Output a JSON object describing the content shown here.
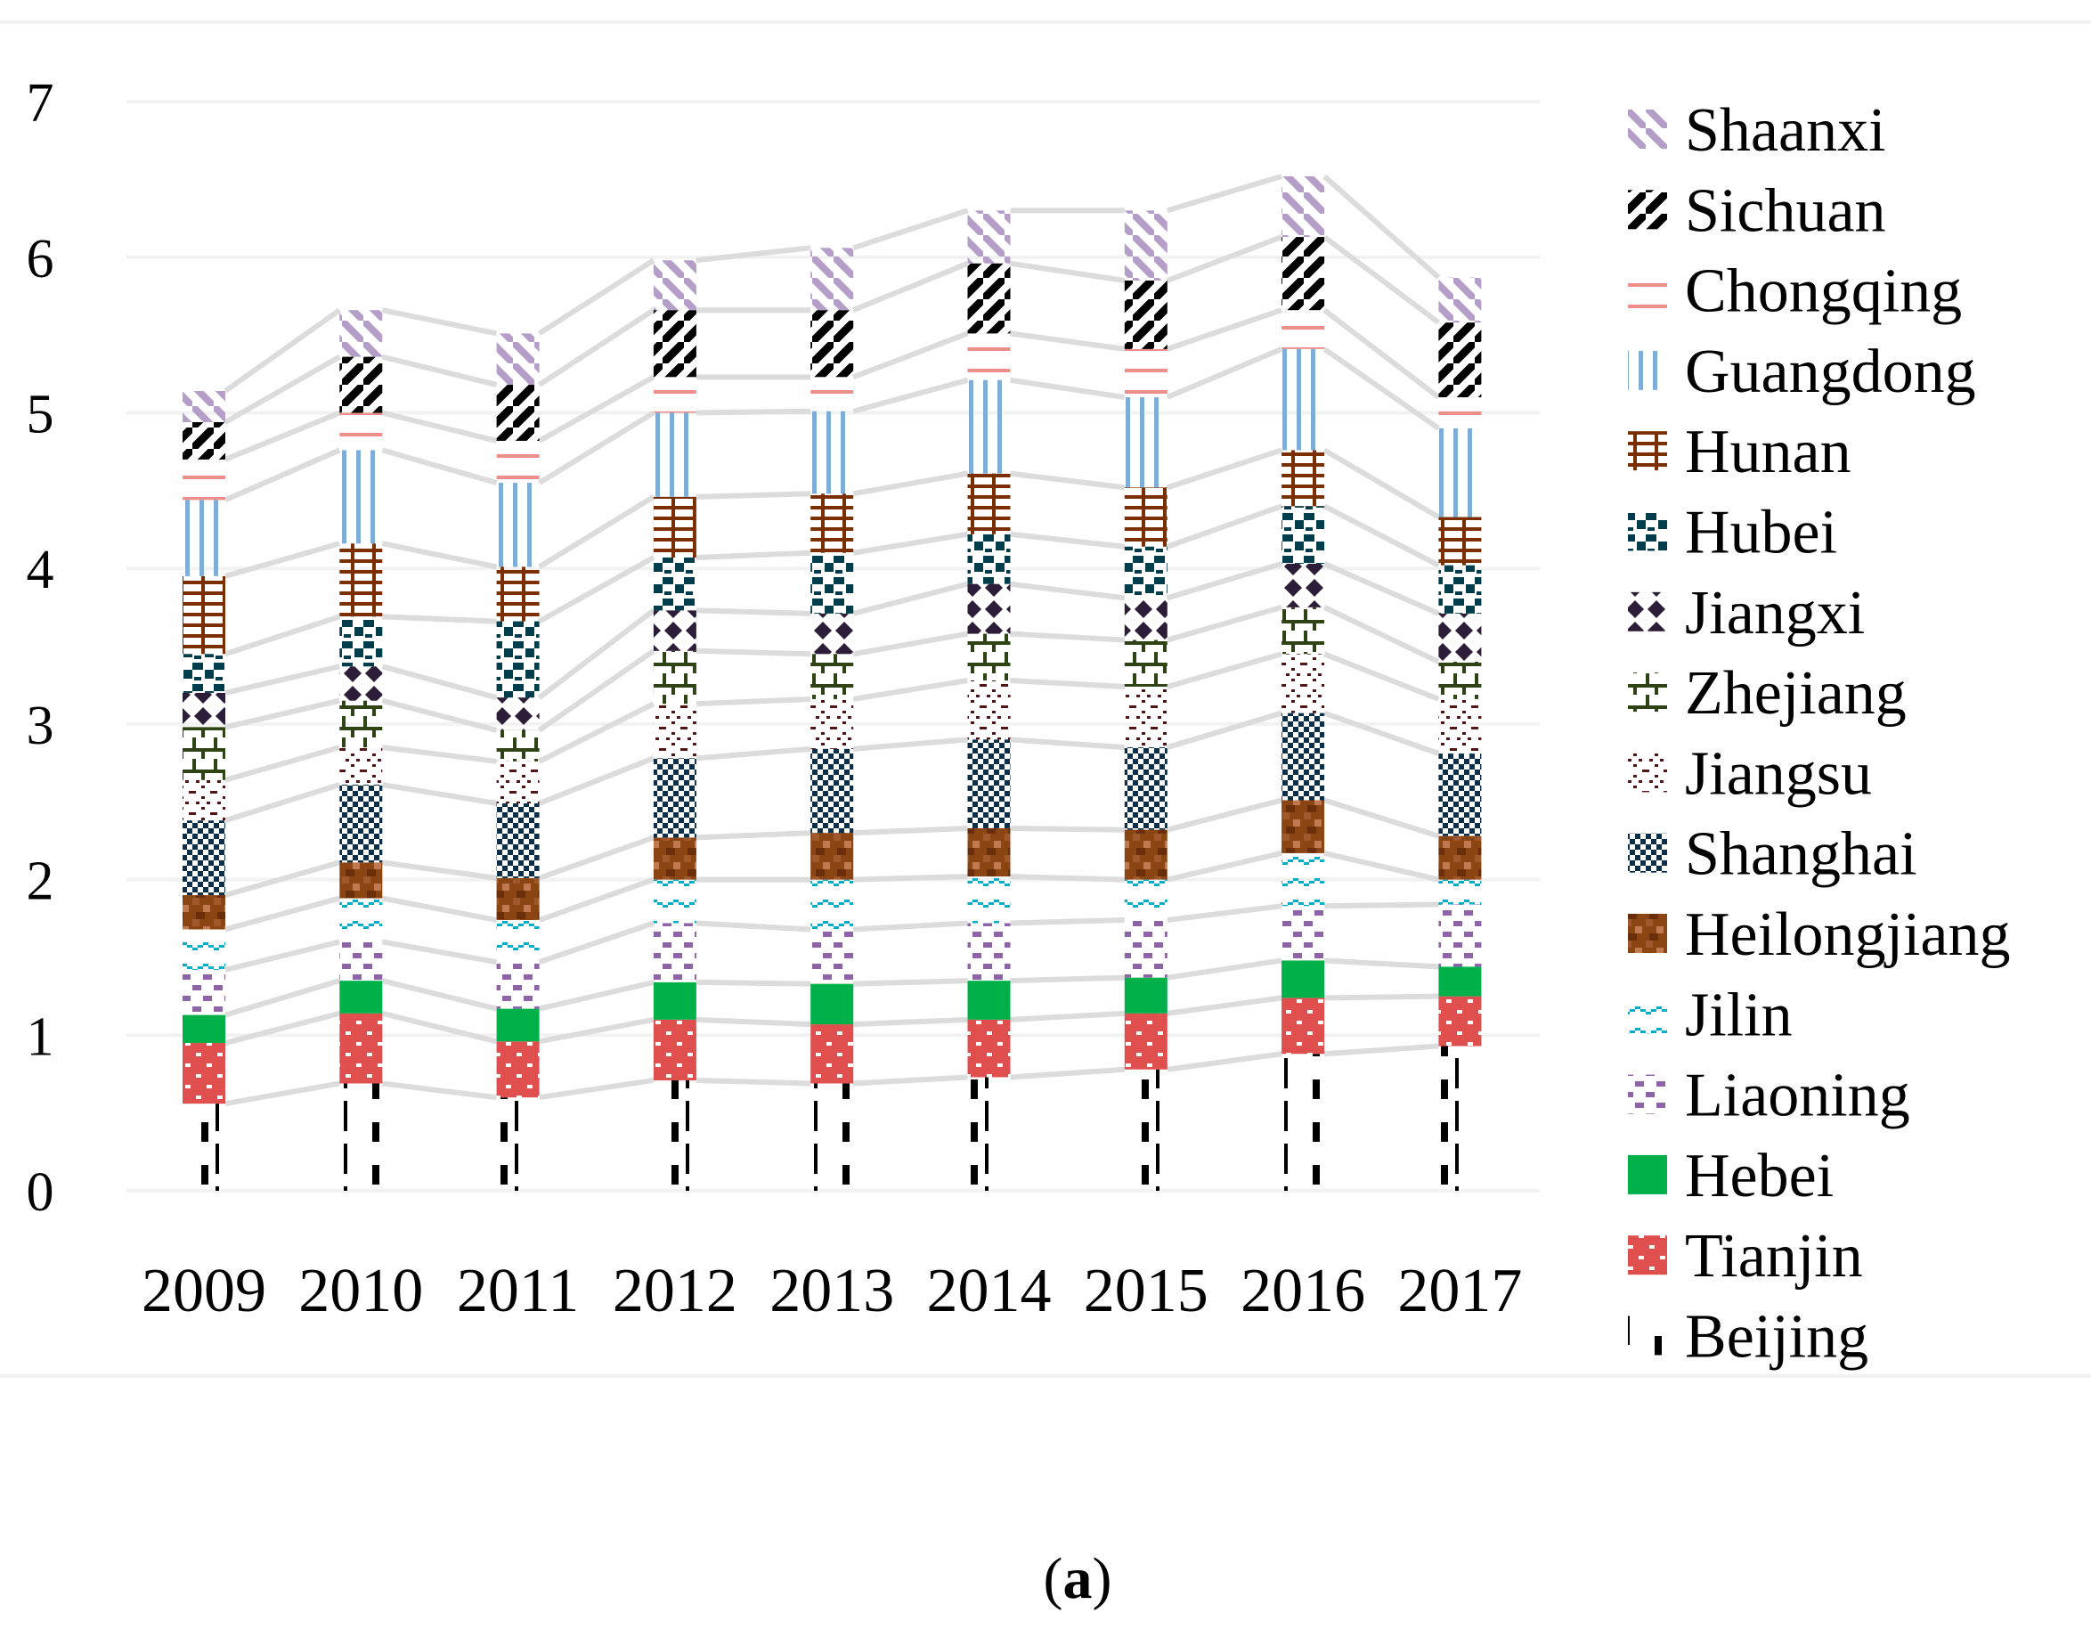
{
  "chart_data": {
    "type": "bar",
    "stacked": true,
    "title": "",
    "xlabel": "",
    "ylabel": "",
    "ylim": [
      0,
      7
    ],
    "yticks": [
      "0",
      "1",
      "2",
      "3",
      "4",
      "5",
      "6",
      "7"
    ],
    "grid": true,
    "legend_position": "right",
    "categories": [
      "2009",
      "2010",
      "2011",
      "2012",
      "2013",
      "2014",
      "2015",
      "2016",
      "2017"
    ],
    "series": [
      {
        "name": "Beijing",
        "color": "#000000",
        "pattern": "dash-vertical",
        "values": [
          0.56,
          0.69,
          0.6,
          0.71,
          0.69,
          0.73,
          0.78,
          0.88,
          0.93
        ]
      },
      {
        "name": "Tianjin",
        "color": "#de4f4d",
        "pattern": "dotted-solid",
        "values": [
          0.39,
          0.45,
          0.36,
          0.39,
          0.38,
          0.37,
          0.36,
          0.36,
          0.32
        ]
      },
      {
        "name": "Hebei",
        "color": "#00b14a",
        "pattern": "solid",
        "values": [
          0.18,
          0.21,
          0.21,
          0.24,
          0.26,
          0.25,
          0.23,
          0.24,
          0.19
        ]
      },
      {
        "name": "Liaoning",
        "color": "#8e63a8",
        "pattern": "checker-sparse",
        "values": [
          0.29,
          0.25,
          0.3,
          0.38,
          0.35,
          0.37,
          0.37,
          0.35,
          0.4
        ]
      },
      {
        "name": "Jilin",
        "color": "#00aec8",
        "pattern": "wave",
        "values": [
          0.26,
          0.28,
          0.27,
          0.28,
          0.32,
          0.3,
          0.26,
          0.34,
          0.16
        ]
      },
      {
        "name": "Heilongjiang",
        "color": "#8b4513",
        "pattern": "texture",
        "values": [
          0.22,
          0.23,
          0.27,
          0.27,
          0.3,
          0.31,
          0.32,
          0.34,
          0.28
        ]
      },
      {
        "name": "Shanghai",
        "color": "#0b2f48",
        "pattern": "checker",
        "values": [
          0.48,
          0.5,
          0.48,
          0.51,
          0.54,
          0.57,
          0.53,
          0.56,
          0.53
        ]
      },
      {
        "name": "Jiangsu",
        "color": "#521414",
        "pattern": "diamond",
        "values": [
          0.26,
          0.24,
          0.27,
          0.35,
          0.32,
          0.38,
          0.39,
          0.38,
          0.35
        ]
      },
      {
        "name": "Zhejiang",
        "color": "#2f4414",
        "pattern": "step",
        "values": [
          0.34,
          0.3,
          0.2,
          0.34,
          0.29,
          0.3,
          0.3,
          0.3,
          0.24
        ]
      },
      {
        "name": "Jiangxi",
        "color": "#2e1d39",
        "pattern": "diamond-solid",
        "values": [
          0.22,
          0.22,
          0.21,
          0.26,
          0.26,
          0.32,
          0.27,
          0.28,
          0.31
        ]
      },
      {
        "name": "Hubei",
        "color": "#013d4a",
        "pattern": "blocks",
        "values": [
          0.25,
          0.32,
          0.49,
          0.34,
          0.39,
          0.32,
          0.33,
          0.37,
          0.31
        ]
      },
      {
        "name": "Hunan",
        "color": "#7b2f00",
        "pattern": "grid-hash",
        "values": [
          0.5,
          0.47,
          0.35,
          0.39,
          0.38,
          0.39,
          0.38,
          0.36,
          0.31
        ]
      },
      {
        "name": "Guangdong",
        "color": "#7eadd8",
        "pattern": "vertical-lines",
        "values": [
          0.49,
          0.6,
          0.54,
          0.54,
          0.53,
          0.6,
          0.58,
          0.65,
          0.57
        ]
      },
      {
        "name": "Chongqing",
        "color": "#ee8e8a",
        "pattern": "horizontal-lines",
        "values": [
          0.26,
          0.24,
          0.27,
          0.23,
          0.22,
          0.3,
          0.31,
          0.25,
          0.2
        ]
      },
      {
        "name": "Sichuan",
        "color": "#000000",
        "pattern": "wide-diagonal-up",
        "values": [
          0.24,
          0.36,
          0.36,
          0.43,
          0.43,
          0.45,
          0.44,
          0.47,
          0.48
        ]
      },
      {
        "name": "Shaanxi",
        "color": "#b59ec8",
        "pattern": "diagonal-down",
        "values": [
          0.2,
          0.3,
          0.33,
          0.32,
          0.4,
          0.34,
          0.45,
          0.39,
          0.29
        ]
      }
    ]
  },
  "caption": {
    "open": "(",
    "label": "a",
    "close": ")"
  }
}
